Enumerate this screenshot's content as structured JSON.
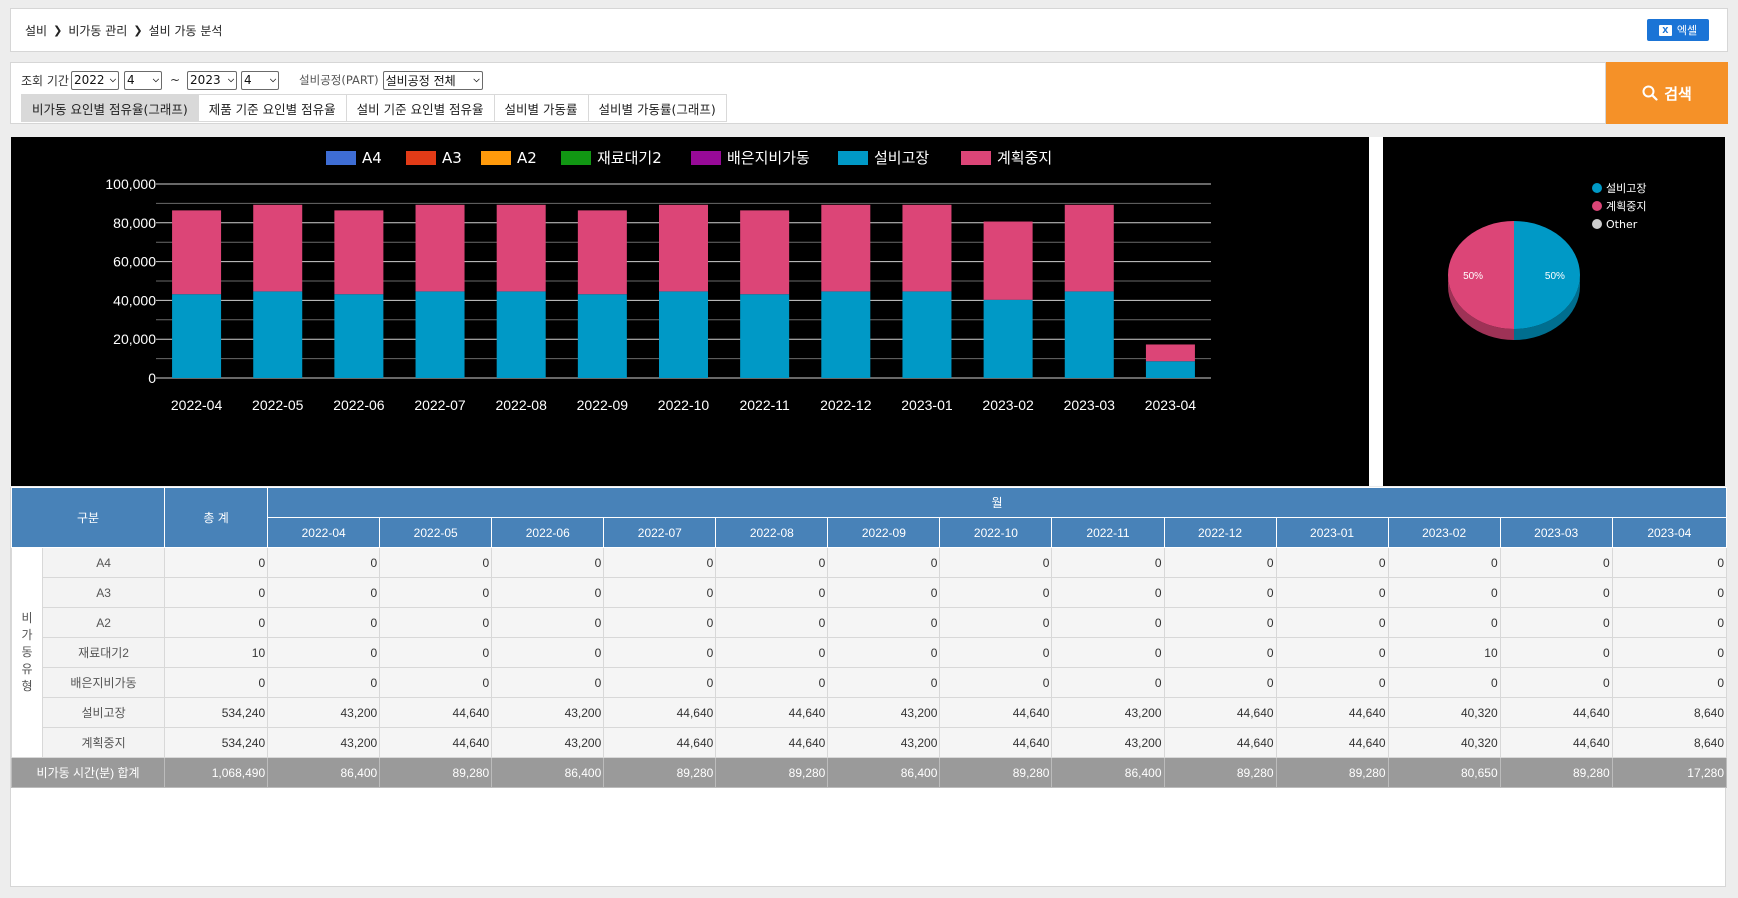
{
  "breadcrumb": [
    "설비",
    "비가동 관리",
    "설비 가동 분석"
  ],
  "excel_label": "엑셀",
  "filters": {
    "period_label": "조회 기간",
    "from_year": "2022",
    "from_month": "4",
    "tilde": "~",
    "to_year": "2023",
    "to_month": "4",
    "part_label": "설비공정(PART)",
    "part_value": "설비공정 전체"
  },
  "tabs": [
    "비가동 요인별 점유율(그래프)",
    "제품 기준 요인별 점유율",
    "설비 기준 요인별 점유율",
    "설비별 가동률",
    "설비별 가동률(그래프)"
  ],
  "search_label": "검색",
  "colors": {
    "A4": "#3e6dd4",
    "A3": "#e23b17",
    "A2": "#ff9a0b",
    "재료대기2": "#119713",
    "배은지비가동": "#980a98",
    "설비고장": "#0099c6",
    "계획중지": "#dc4577",
    "header": "#4882b8",
    "search": "#f59128",
    "excel": "#1b74d6"
  },
  "chart_data": [
    {
      "type": "bar",
      "stacked": true,
      "categories": [
        "2022-04",
        "2022-05",
        "2022-06",
        "2022-07",
        "2022-08",
        "2022-09",
        "2022-10",
        "2022-11",
        "2022-12",
        "2023-01",
        "2023-02",
        "2023-03",
        "2023-04"
      ],
      "series": [
        {
          "name": "A4",
          "values": [
            0,
            0,
            0,
            0,
            0,
            0,
            0,
            0,
            0,
            0,
            0,
            0,
            0
          ]
        },
        {
          "name": "A3",
          "values": [
            0,
            0,
            0,
            0,
            0,
            0,
            0,
            0,
            0,
            0,
            0,
            0,
            0
          ]
        },
        {
          "name": "A2",
          "values": [
            0,
            0,
            0,
            0,
            0,
            0,
            0,
            0,
            0,
            0,
            0,
            0,
            0
          ]
        },
        {
          "name": "재료대기2",
          "values": [
            0,
            0,
            0,
            0,
            0,
            0,
            0,
            0,
            0,
            0,
            10,
            0,
            0
          ]
        },
        {
          "name": "배은지비가동",
          "values": [
            0,
            0,
            0,
            0,
            0,
            0,
            0,
            0,
            0,
            0,
            0,
            0,
            0
          ]
        },
        {
          "name": "설비고장",
          "values": [
            43200,
            44640,
            43200,
            44640,
            44640,
            43200,
            44640,
            43200,
            44640,
            44640,
            40320,
            44640,
            8640
          ]
        },
        {
          "name": "계획중지",
          "values": [
            43200,
            44640,
            43200,
            44640,
            44640,
            43200,
            44640,
            43200,
            44640,
            44640,
            40320,
            44640,
            8640
          ]
        }
      ],
      "yticks": [
        "0",
        "20,000",
        "40,000",
        "60,000",
        "80,000",
        "100,000"
      ],
      "ylim": [
        0,
        100000
      ],
      "legend_position": "top",
      "grid": true
    },
    {
      "type": "pie",
      "slices": [
        {
          "name": "설비고장",
          "value": 50,
          "label": "50%"
        },
        {
          "name": "계획중지",
          "value": 50,
          "label": "50%"
        },
        {
          "name": "Other",
          "value": 0
        }
      ],
      "legend": [
        "설비고장",
        "계획중지",
        "Other"
      ],
      "legend_position": "top-right"
    }
  ],
  "table": {
    "h_category": "구분",
    "h_total": "총 계",
    "h_month": "월",
    "months": [
      "2022-04",
      "2022-05",
      "2022-06",
      "2022-07",
      "2022-08",
      "2022-09",
      "2022-10",
      "2022-11",
      "2022-12",
      "2023-01",
      "2023-02",
      "2023-03",
      "2023-04"
    ],
    "group_label": "비가동유형",
    "rows": [
      {
        "label": "A4",
        "total": "0",
        "values": [
          "0",
          "0",
          "0",
          "0",
          "0",
          "0",
          "0",
          "0",
          "0",
          "0",
          "0",
          "0",
          "0"
        ]
      },
      {
        "label": "A3",
        "total": "0",
        "values": [
          "0",
          "0",
          "0",
          "0",
          "0",
          "0",
          "0",
          "0",
          "0",
          "0",
          "0",
          "0",
          "0"
        ]
      },
      {
        "label": "A2",
        "total": "0",
        "values": [
          "0",
          "0",
          "0",
          "0",
          "0",
          "0",
          "0",
          "0",
          "0",
          "0",
          "0",
          "0",
          "0"
        ]
      },
      {
        "label": "재료대기2",
        "total": "10",
        "values": [
          "0",
          "0",
          "0",
          "0",
          "0",
          "0",
          "0",
          "0",
          "0",
          "0",
          "10",
          "0",
          "0"
        ]
      },
      {
        "label": "배은지비가동",
        "total": "0",
        "values": [
          "0",
          "0",
          "0",
          "0",
          "0",
          "0",
          "0",
          "0",
          "0",
          "0",
          "0",
          "0",
          "0"
        ]
      },
      {
        "label": "설비고장",
        "total": "534,240",
        "values": [
          "43,200",
          "44,640",
          "43,200",
          "44,640",
          "44,640",
          "43,200",
          "44,640",
          "43,200",
          "44,640",
          "44,640",
          "40,320",
          "44,640",
          "8,640"
        ]
      },
      {
        "label": "계획중지",
        "total": "534,240",
        "values": [
          "43,200",
          "44,640",
          "43,200",
          "44,640",
          "44,640",
          "43,200",
          "44,640",
          "43,200",
          "44,640",
          "44,640",
          "40,320",
          "44,640",
          "8,640"
        ]
      }
    ],
    "sum": {
      "label": "비가동 시간(분) 합계",
      "total": "1,068,490",
      "values": [
        "86,400",
        "89,280",
        "86,400",
        "89,280",
        "89,280",
        "86,400",
        "89,280",
        "86,400",
        "89,280",
        "89,280",
        "80,650",
        "89,280",
        "17,280"
      ]
    }
  }
}
